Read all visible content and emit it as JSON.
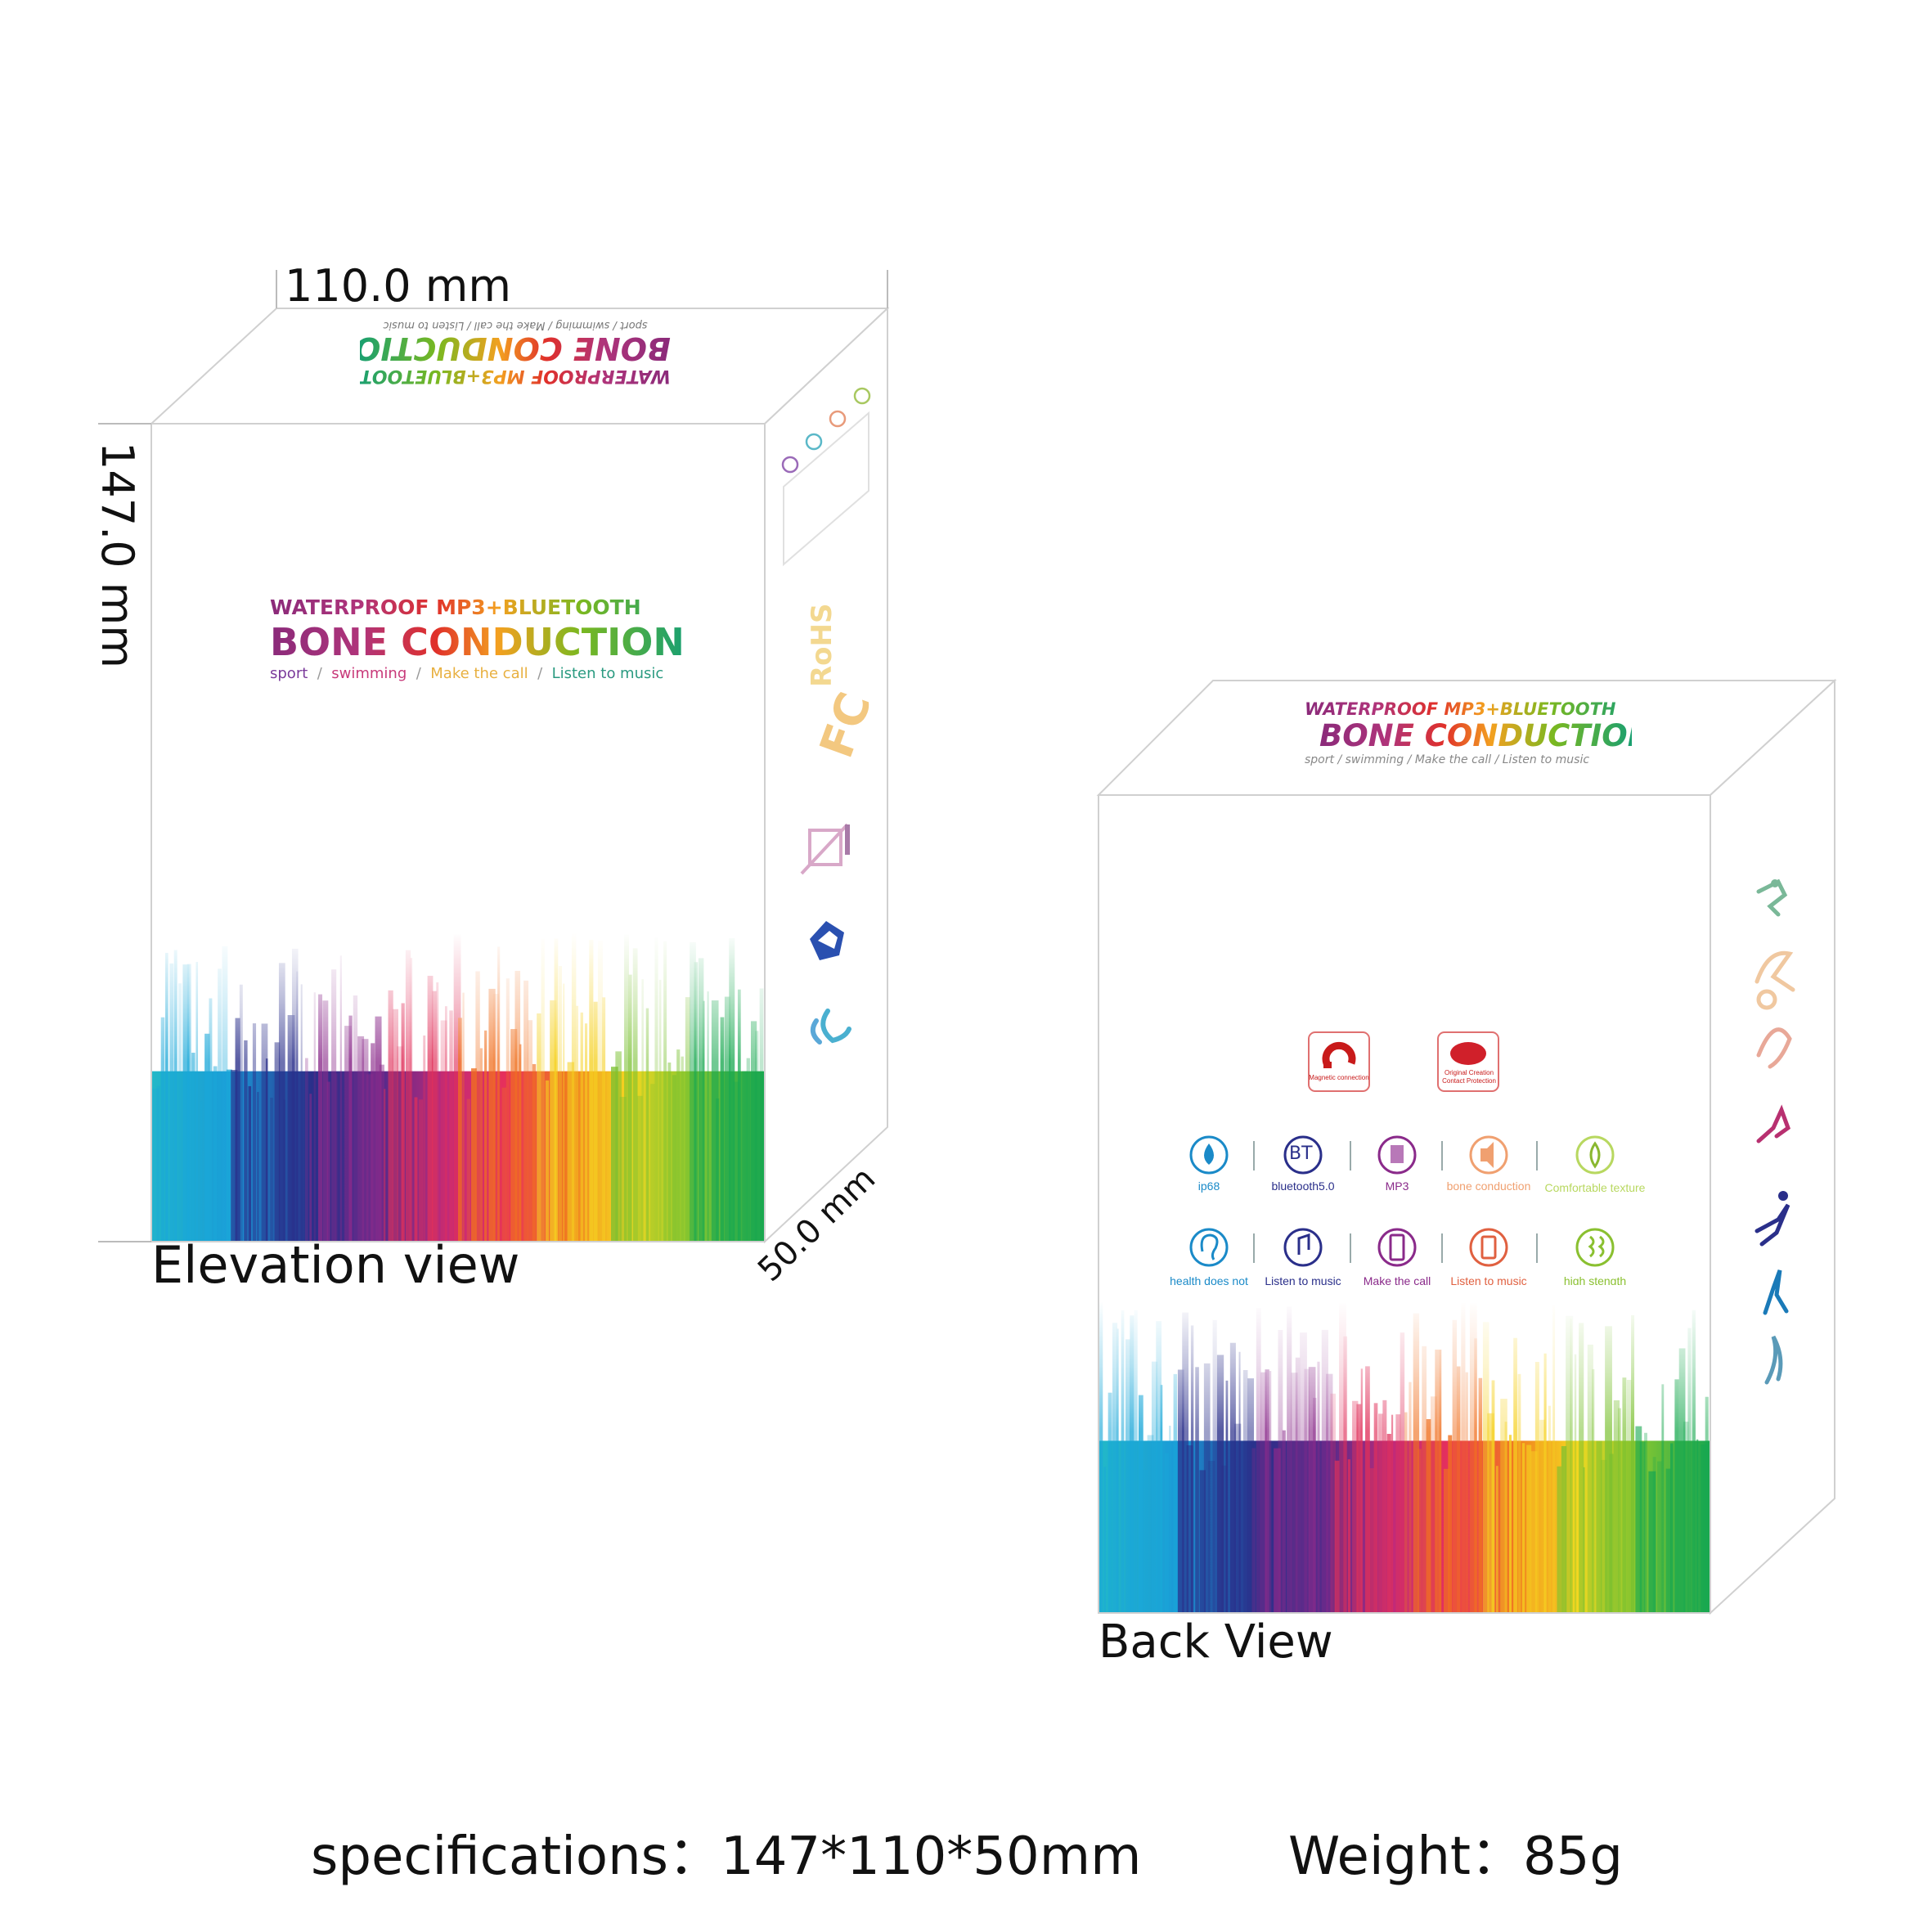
{
  "dimensions": {
    "width": "110.0 mm",
    "height": "147.0 mm",
    "depth": "50.0 mm"
  },
  "views": {
    "front": "Elevation view",
    "back": "Back View"
  },
  "front_box": {
    "headline": "WATERPROOF MP3+BLUETOOTH",
    "title": "BONE CONDUCTION",
    "tags": [
      "sport",
      "swimming",
      "Make the call",
      "Listen to music"
    ],
    "separator": "/",
    "side_marks": [
      "RoHS",
      "FC",
      "bin-icon",
      "recycle-icon",
      "ce-icon"
    ]
  },
  "back_box": {
    "headline": "WATERPROOF MP3+BLUETOOTH",
    "title": "BONE CONDUCTION",
    "tags": [
      "sport",
      "swimming",
      "Make the call",
      "Listen to music"
    ],
    "badges": [
      "Magnetic connection",
      "Original Creation Contact Protection"
    ],
    "features_row1": [
      "ip68",
      "bluetooth5.0",
      "MP3",
      "bone conduction",
      "Comfortable texture"
    ],
    "bt_symbol": "BT",
    "features_row2": [
      "health does not",
      "Listen to music",
      "Make the call",
      "Listen to music",
      "high stength"
    ]
  },
  "specs": {
    "size_label": "specifications：",
    "size_value": "147*110*50mm",
    "weight_label": "Weight：",
    "weight_value": "85g"
  },
  "colors": {
    "rainbow": [
      "#1aa7d8",
      "#2a2f8a",
      "#8a2a8a",
      "#e0305a",
      "#f07020",
      "#f5d020",
      "#7ac030",
      "#18a850"
    ]
  }
}
